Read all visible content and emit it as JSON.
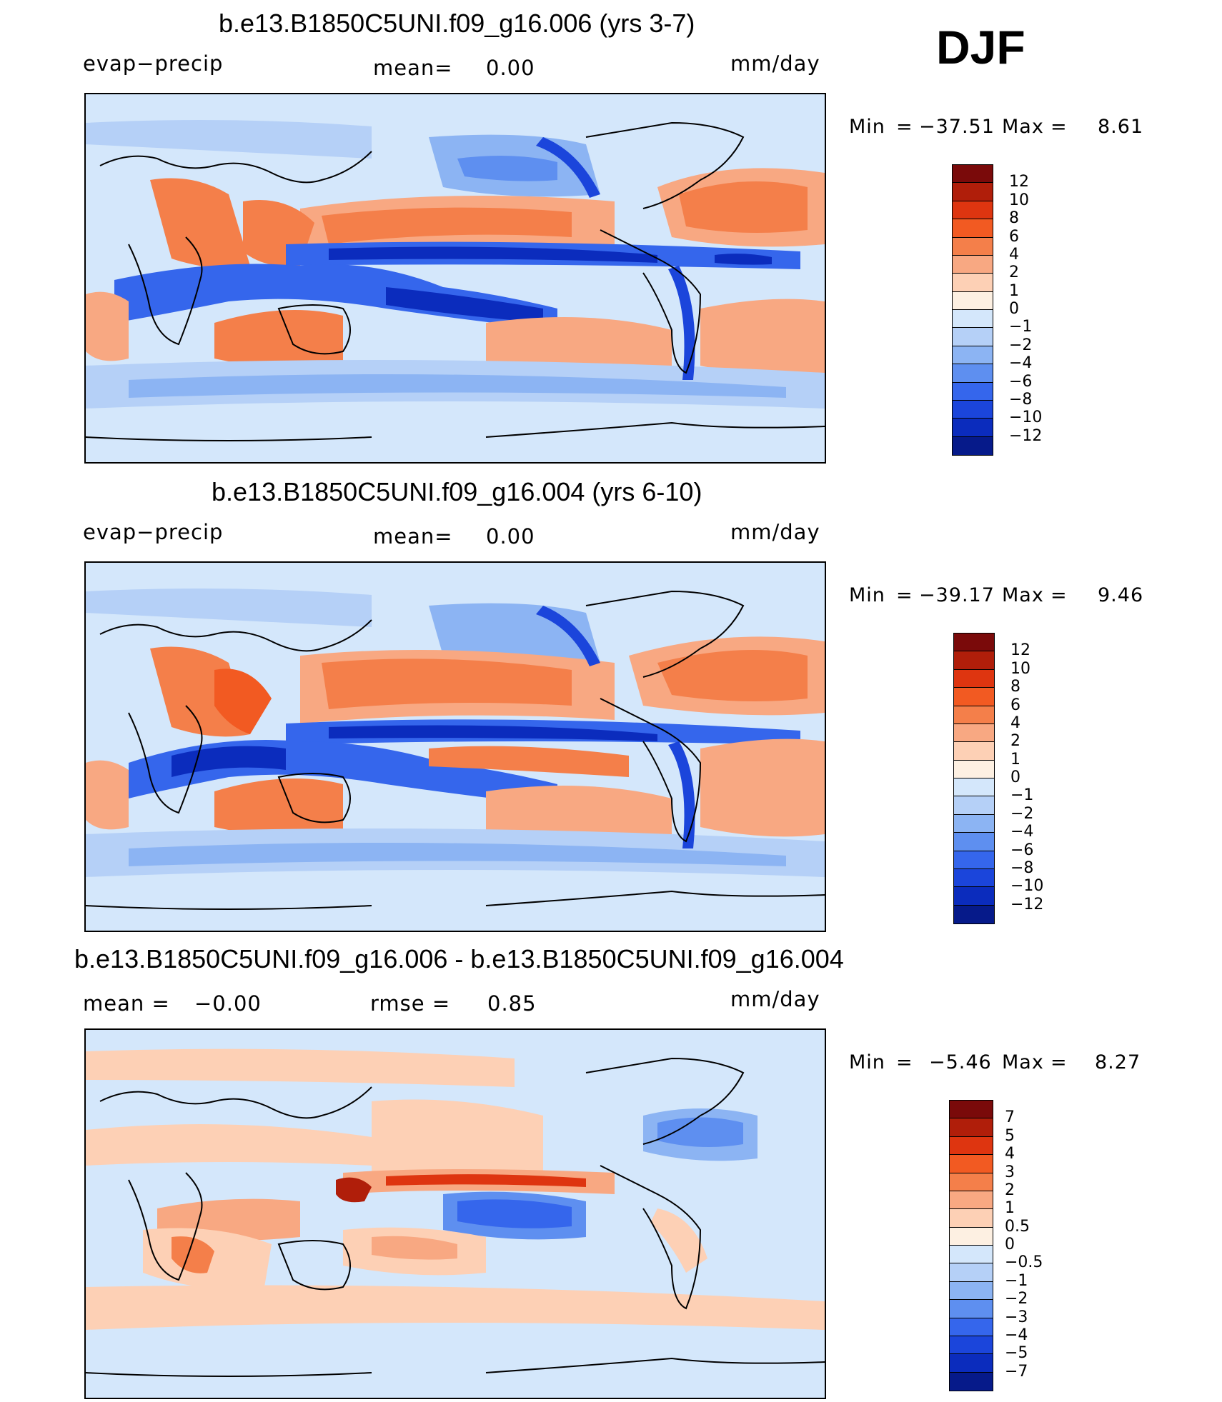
{
  "season": "DJF",
  "panels": [
    {
      "title": "b.e13.B1850C5UNI.f09_g16.006 (yrs 3-7)",
      "variable": "evap−precip",
      "stat1": "mean=",
      "stat1_value": "0.00",
      "units": "mm/day",
      "minmax": {
        "min_label": "Min",
        "eq": "=",
        "min": "−37.51",
        "max_label": "Max",
        "max": "8.61"
      },
      "colorbar": {
        "labels": [
          "12",
          "10",
          "8",
          "6",
          "4",
          "2",
          "1",
          "0",
          "−1",
          "−2",
          "−4",
          "−6",
          "−8",
          "−10",
          "−12"
        ],
        "colors": [
          "#7a0a0a",
          "#b01e0a",
          "#de3510",
          "#f25a22",
          "#f47f4a",
          "#f8a882",
          "#fdd0b5",
          "#fdf0e2",
          "#d4e7fb",
          "#b5d0f7",
          "#8cb4f3",
          "#5e8ff0",
          "#3566ec",
          "#1b45db",
          "#0b2cbd",
          "#061a8a"
        ]
      }
    },
    {
      "title": "b.e13.B1850C5UNI.f09_g16.004 (yrs 6-10)",
      "variable": "evap−precip",
      "stat1": "mean=",
      "stat1_value": "0.00",
      "units": "mm/day",
      "minmax": {
        "min_label": "Min",
        "eq": "=",
        "min": "−39.17",
        "max_label": "Max",
        "max": "9.46"
      },
      "colorbar": {
        "labels": [
          "12",
          "10",
          "8",
          "6",
          "4",
          "2",
          "1",
          "0",
          "−1",
          "−2",
          "−4",
          "−6",
          "−8",
          "−10",
          "−12"
        ],
        "colors": [
          "#7a0a0a",
          "#b01e0a",
          "#de3510",
          "#f25a22",
          "#f47f4a",
          "#f8a882",
          "#fdd0b5",
          "#fdf0e2",
          "#d4e7fb",
          "#b5d0f7",
          "#8cb4f3",
          "#5e8ff0",
          "#3566ec",
          "#1b45db",
          "#0b2cbd",
          "#061a8a"
        ]
      }
    },
    {
      "title": "b.e13.B1850C5UNI.f09_g16.006 - b.e13.B1850C5UNI.f09_g16.004",
      "stat1": "mean  =",
      "stat1_value": "−0.00",
      "stat2": "rmse  =",
      "stat2_value": "0.85",
      "units": "mm/day",
      "minmax": {
        "min_label": "Min",
        "eq": "=",
        "min": "−5.46",
        "max_label": "Max",
        "max": "8.27"
      },
      "colorbar": {
        "labels": [
          "7",
          "5",
          "4",
          "3",
          "2",
          "1",
          "0.5",
          "0",
          "−0.5",
          "−1",
          "−2",
          "−3",
          "−4",
          "−5",
          "−7"
        ],
        "colors": [
          "#7a0a0a",
          "#b01e0a",
          "#de3510",
          "#f25a22",
          "#f47f4a",
          "#f8a882",
          "#fdd0b5",
          "#fdf0e2",
          "#d4e7fb",
          "#b5d0f7",
          "#8cb4f3",
          "#5e8ff0",
          "#3566ec",
          "#1b45db",
          "#0b2cbd",
          "#061a8a"
        ]
      }
    }
  ],
  "map_colors": {
    "ocean_base": "#d4e7fb",
    "neg_light": "#b5d0f7",
    "neg_mid": "#8cb4f3",
    "neg_strong": "#3566ec",
    "neg_max": "#0b2cbd",
    "pos_light": "#fdd0b5",
    "pos_mid": "#f8a882",
    "pos_strong": "#f25a22",
    "pos_max": "#b01e0a",
    "coast": "#000000"
  }
}
